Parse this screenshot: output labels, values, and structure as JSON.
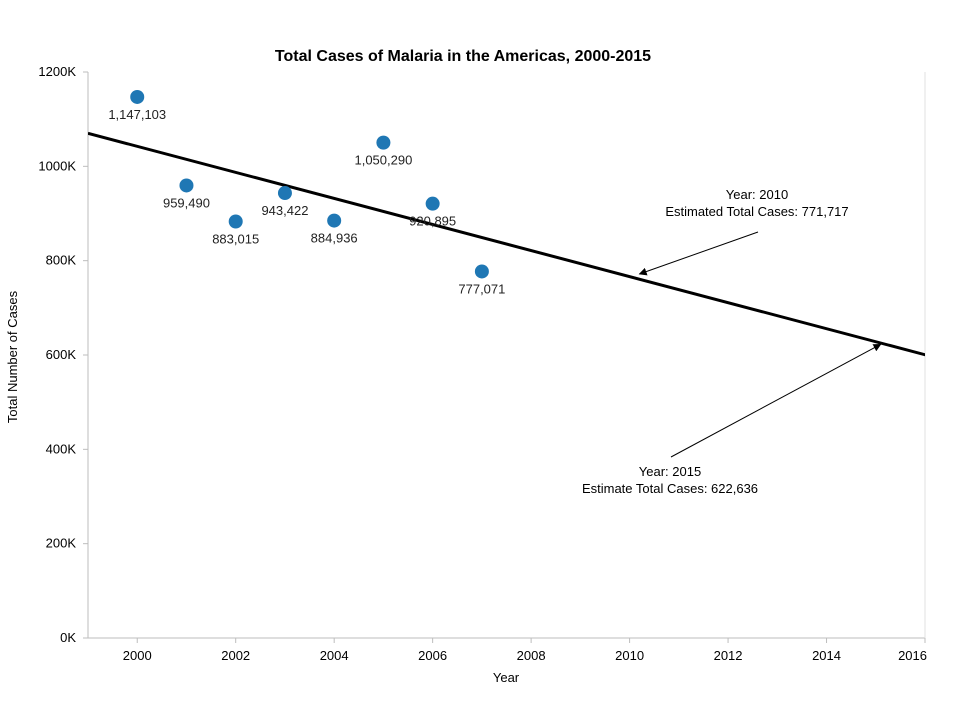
{
  "chart_data": {
    "type": "scatter",
    "title": "Total Cases of Malaria in the Americas, 2000-2015",
    "xlabel": "Year",
    "ylabel": "Total Number of Cases",
    "xlim": [
      1999,
      2016
    ],
    "ylim": [
      0,
      1200000
    ],
    "x_ticks": [
      2000,
      2002,
      2004,
      2006,
      2008,
      2010,
      2012,
      2014,
      2016
    ],
    "y_ticks": [
      {
        "value": 0,
        "label": "0K"
      },
      {
        "value": 200000,
        "label": "200K"
      },
      {
        "value": 400000,
        "label": "400K"
      },
      {
        "value": 600000,
        "label": "600K"
      },
      {
        "value": 800000,
        "label": "800K"
      },
      {
        "value": 1000000,
        "label": "1000K"
      },
      {
        "value": 1200000,
        "label": "1200K"
      }
    ],
    "grid": false,
    "marker_color": "#1f77b4",
    "points": [
      {
        "x": 2000,
        "y": 1147103,
        "label": "1,147,103"
      },
      {
        "x": 2001,
        "y": 959490,
        "label": "959,490"
      },
      {
        "x": 2002,
        "y": 883015,
        "label": "883,015"
      },
      {
        "x": 2003,
        "y": 943422,
        "label": "943,422"
      },
      {
        "x": 2004,
        "y": 884936,
        "label": "884,936"
      },
      {
        "x": 2005,
        "y": 1050290,
        "label": "1,050,290"
      },
      {
        "x": 2006,
        "y": 920895,
        "label": "920,895"
      },
      {
        "x": 2007,
        "y": 777071,
        "label": "777,071"
      }
    ],
    "trend_line": {
      "x": [
        1999,
        2016.2
      ],
      "y": [
        1070000,
        595000
      ],
      "color": "#000000"
    },
    "annotations": [
      {
        "lines": [
          "Year: 2010",
          "Estimated Total Cases: 771,717"
        ],
        "target": {
          "x": 2010.2,
          "y": 771717
        }
      },
      {
        "lines": [
          "Year: 2015",
          "Estimate Total Cases: 622,636"
        ],
        "target": {
          "x": 2015.1,
          "y": 622636
        }
      }
    ]
  }
}
